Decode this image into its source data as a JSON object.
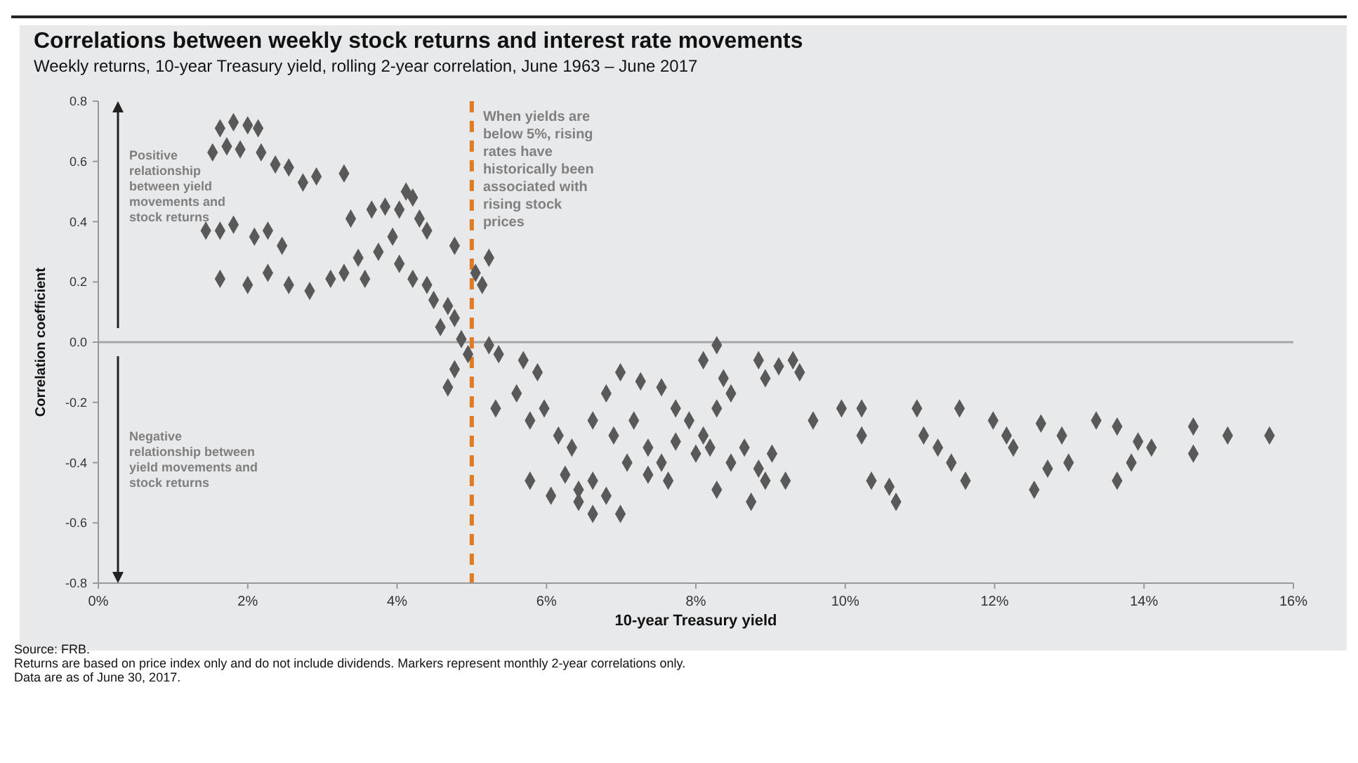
{
  "chart_data": {
    "type": "scatter",
    "title": "Correlations between weekly stock returns and interest rate movements",
    "subtitle": "Weekly returns, 10-year Treasury yield, rolling 2-year correlation, June 1963 – June 2017",
    "xlabel": "10-year Treasury yield",
    "ylabel": "Correlation coefficient",
    "xlim": [
      0,
      16
    ],
    "xticks": [
      {
        "value": 0,
        "label": "0%"
      },
      {
        "value": 2,
        "label": "2%"
      },
      {
        "value": 4,
        "label": "4%"
      },
      {
        "value": 6,
        "label": "6%"
      },
      {
        "value": 8,
        "label": "8%"
      },
      {
        "value": 10,
        "label": "10%"
      },
      {
        "value": 12,
        "label": "12%"
      },
      {
        "value": 14,
        "label": "14%"
      },
      {
        "value": 16,
        "label": "16%"
      }
    ],
    "ylim": [
      -0.8,
      0.8
    ],
    "yticks": [
      -0.8,
      -0.6,
      -0.4,
      -0.2,
      {
        "value": 0,
        "label": "0.0"
      },
      0.2,
      0.4,
      0.6,
      0.8
    ],
    "marker": "diamond",
    "ref_lines": [
      {
        "axis": "y",
        "value": 0,
        "color": "#a6a6a6",
        "line_style": "solid"
      },
      {
        "axis": "x",
        "value": 5,
        "label": "When yields are below 5%, rising rates have historically been associated with rising stock prices",
        "color": "#e07b24",
        "line_style": "dashed"
      }
    ],
    "annotations": [
      "Positive relationship between yield movements and stock returns",
      "Negative relationship between yield movements and stock returns",
      "Source: FRB.",
      "Returns are based on price index only and do not include dividends. Markers represent monthly 2-year correlations only.",
      "Data are as of June 30, 2017."
    ],
    "series": [
      {
        "color": "#595959",
        "x": [
          1.63,
          1.81,
          2.0,
          2.14,
          1.53,
          1.72,
          1.9,
          2.18,
          2.37,
          2.55,
          2.74,
          2.92,
          3.29,
          1.44,
          1.63,
          1.81,
          2.09,
          2.27,
          2.46,
          1.63,
          2.0,
          2.27,
          2.55,
          2.83,
          3.11,
          3.29,
          3.48,
          3.57,
          3.38,
          3.66,
          3.84,
          4.03,
          4.12,
          4.21,
          4.3,
          4.4,
          3.94,
          3.75,
          4.03,
          4.21,
          4.4,
          4.49,
          4.68,
          4.77,
          4.58,
          4.86,
          4.95,
          4.77,
          4.68,
          5.05,
          5.14,
          5.23,
          4.77,
          5.23,
          5.36,
          5.69,
          5.88,
          5.6,
          5.32,
          5.78,
          5.97,
          6.16,
          6.34,
          6.25,
          6.43,
          6.62,
          6.8,
          6.43,
          6.06,
          5.78,
          6.62,
          6.99,
          6.62,
          6.8,
          6.99,
          6.9,
          7.17,
          7.36,
          7.08,
          7.36,
          7.54,
          7.63,
          7.26,
          7.54,
          7.73,
          7.91,
          8.1,
          8.19,
          8.0,
          7.73,
          8.28,
          8.47,
          8.1,
          8.28,
          8.37,
          8.47,
          8.65,
          8.84,
          9.02,
          8.93,
          8.28,
          8.84,
          9.11,
          9.3,
          9.39,
          8.93,
          9.2,
          8.74,
          9.57,
          9.95,
          10.22,
          10.22,
          10.35,
          10.59,
          10.68,
          10.96,
          11.05,
          11.24,
          11.42,
          11.61,
          11.53,
          11.98,
          12.16,
          12.25,
          12.53,
          12.62,
          12.9,
          12.99,
          12.71,
          13.36,
          13.64,
          13.92,
          13.83,
          13.64,
          14.1,
          14.66,
          14.66,
          15.12,
          15.68
        ],
        "values": [
          0.71,
          0.73,
          0.72,
          0.71,
          0.63,
          0.65,
          0.64,
          0.63,
          0.59,
          0.58,
          0.53,
          0.55,
          0.56,
          0.37,
          0.37,
          0.39,
          0.35,
          0.37,
          0.32,
          0.21,
          0.19,
          0.23,
          0.19,
          0.17,
          0.21,
          0.23,
          0.28,
          0.21,
          0.41,
          0.44,
          0.45,
          0.44,
          0.5,
          0.48,
          0.41,
          0.37,
          0.35,
          0.3,
          0.26,
          0.21,
          0.19,
          0.14,
          0.12,
          0.08,
          0.05,
          0.01,
          -0.04,
          -0.09,
          -0.15,
          0.23,
          0.19,
          0.28,
          0.32,
          -0.01,
          -0.04,
          -0.06,
          -0.1,
          -0.17,
          -0.22,
          -0.26,
          -0.22,
          -0.31,
          -0.35,
          -0.44,
          -0.49,
          -0.46,
          -0.51,
          -0.53,
          -0.51,
          -0.46,
          -0.57,
          -0.57,
          -0.26,
          -0.17,
          -0.1,
          -0.31,
          -0.26,
          -0.35,
          -0.4,
          -0.44,
          -0.4,
          -0.46,
          -0.13,
          -0.15,
          -0.22,
          -0.26,
          -0.31,
          -0.35,
          -0.37,
          -0.33,
          -0.22,
          -0.17,
          -0.06,
          -0.01,
          -0.12,
          -0.4,
          -0.35,
          -0.42,
          -0.37,
          -0.46,
          -0.49,
          -0.06,
          -0.08,
          -0.06,
          -0.1,
          -0.12,
          -0.46,
          -0.53,
          -0.26,
          -0.22,
          -0.22,
          -0.31,
          -0.46,
          -0.48,
          -0.53,
          -0.22,
          -0.31,
          -0.35,
          -0.4,
          -0.46,
          -0.22,
          -0.26,
          -0.31,
          -0.35,
          -0.49,
          -0.27,
          -0.31,
          -0.4,
          -0.42,
          -0.26,
          -0.28,
          -0.33,
          -0.4,
          -0.46,
          -0.35,
          -0.28,
          -0.37,
          -0.31,
          -0.31
        ]
      }
    ]
  }
}
